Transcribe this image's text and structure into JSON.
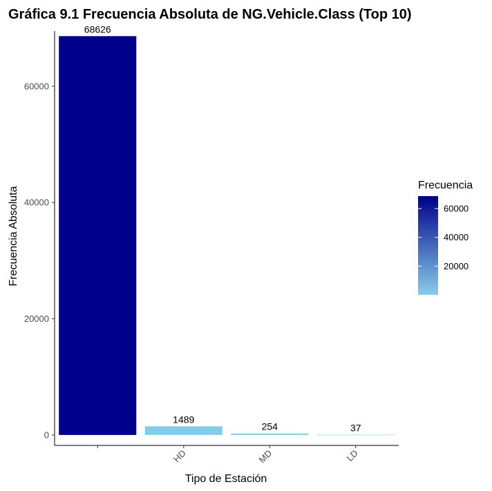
{
  "chart_data": {
    "type": "bar",
    "title": "Gráfica 9.1 Frecuencia Absoluta de NG.Vehicle.Class (Top 10)",
    "xlabel": "Tipo de Estación",
    "ylabel": "Frecuencia Absoluta",
    "categories": [
      "",
      "HD",
      "MD",
      "LD"
    ],
    "values": [
      68626,
      1489,
      254,
      37
    ],
    "data_labels": [
      "68626",
      "1489",
      "254",
      "37"
    ],
    "ylim": [
      -1800,
      69500
    ],
    "yticks": [
      0,
      20000,
      40000,
      60000
    ],
    "ytick_labels": [
      "0",
      "20000",
      "40000",
      "60000"
    ],
    "grid": false,
    "legend": {
      "title": "Frecuencia",
      "placement": "right",
      "ticks": [
        20000,
        40000,
        60000
      ],
      "tick_labels": [
        "20000",
        "40000",
        "60000"
      ],
      "range": [
        37,
        68626
      ]
    },
    "colors": {
      "low": "#87ceeb",
      "high": "#00008b"
    }
  }
}
